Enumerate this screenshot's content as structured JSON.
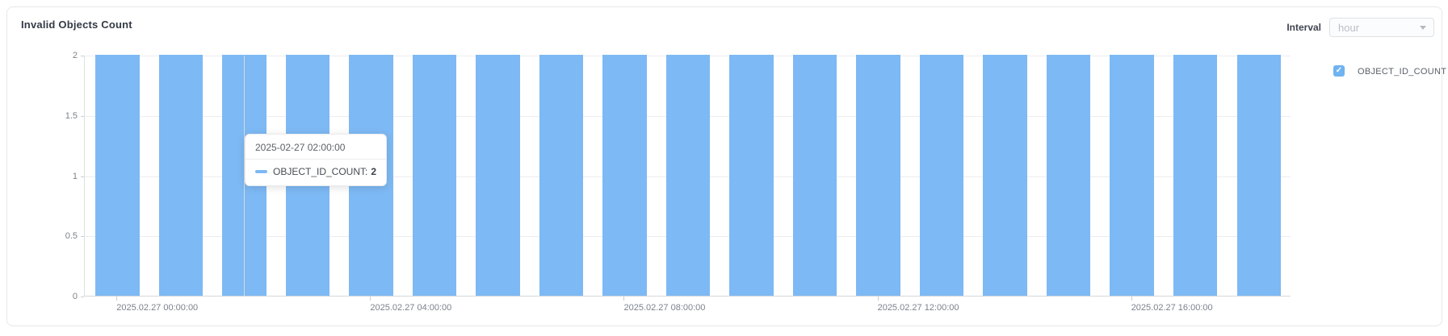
{
  "card": {
    "title": "Invalid Objects Count"
  },
  "interval_control": {
    "label": "Interval",
    "value": "hour"
  },
  "legend": {
    "items": [
      {
        "label": "OBJECT_ID_COUNT",
        "checked": true
      }
    ]
  },
  "tooltip": {
    "header": "2025-02-27 02:00:00",
    "series_label": "OBJECT_ID_COUNT:",
    "value": "2"
  },
  "colors": {
    "bar": "#7db9f4",
    "accent": "#6fb3f1",
    "axis_text": "#7b828c"
  },
  "chart_data": {
    "type": "bar",
    "title": "Invalid Objects Count",
    "categories": [
      "2025-02-27 00:00:00",
      "2025-02-27 01:00:00",
      "2025-02-27 02:00:00",
      "2025-02-27 03:00:00",
      "2025-02-27 04:00:00",
      "2025-02-27 05:00:00",
      "2025-02-27 06:00:00",
      "2025-02-27 07:00:00",
      "2025-02-27 08:00:00",
      "2025-02-27 09:00:00",
      "2025-02-27 10:00:00",
      "2025-02-27 11:00:00",
      "2025-02-27 12:00:00",
      "2025-02-27 13:00:00",
      "2025-02-27 14:00:00",
      "2025-02-27 15:00:00",
      "2025-02-27 16:00:00",
      "2025-02-27 17:00:00",
      "2025-02-27 18:00:00"
    ],
    "series": [
      {
        "name": "OBJECT_ID_COUNT",
        "values": [
          2,
          2,
          2,
          2,
          2,
          2,
          2,
          2,
          2,
          2,
          2,
          2,
          2,
          2,
          2,
          2,
          2,
          2,
          2
        ]
      }
    ],
    "ylim": [
      0,
      2
    ],
    "y_ticks": [
      0,
      0.5,
      1,
      1.5,
      2
    ],
    "x_tick_labels": [
      "2025.02.27 00:00:00",
      "2025.02.27 04:00:00",
      "2025.02.27 08:00:00",
      "2025.02.27 12:00:00",
      "2025.02.27 16:00:00"
    ],
    "x_tick_every": 4,
    "grid": true,
    "legend_position": "right",
    "bar_color": "#7db9f4",
    "hovered_index": 2,
    "hovered_category": "2025-02-27 02:00:00"
  }
}
